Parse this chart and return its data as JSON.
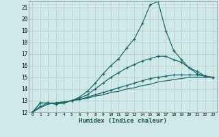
{
  "title": "",
  "xlabel": "Humidex (Indice chaleur)",
  "ylabel": "",
  "bg_color": "#cfe8e8",
  "line_color": "#1a6b6b",
  "grid_color": "#b8d8d8",
  "xlim": [
    -0.5,
    23.5
  ],
  "ylim": [
    12,
    21.5
  ],
  "yticks": [
    12,
    13,
    14,
    15,
    16,
    17,
    18,
    19,
    20,
    21
  ],
  "xticks": [
    0,
    1,
    2,
    3,
    4,
    5,
    6,
    7,
    8,
    9,
    10,
    11,
    12,
    13,
    14,
    15,
    16,
    17,
    18,
    19,
    20,
    21,
    22,
    23
  ],
  "line1_x": [
    0,
    1,
    2,
    3,
    4,
    5,
    6,
    7,
    8,
    9,
    10,
    11,
    12,
    13,
    14,
    15,
    16,
    17,
    18,
    19,
    20,
    21,
    22,
    23
  ],
  "line1_y": [
    12.0,
    12.8,
    12.8,
    12.7,
    12.8,
    13.0,
    13.3,
    13.8,
    14.5,
    15.3,
    16.0,
    16.6,
    17.5,
    18.3,
    19.6,
    21.2,
    21.5,
    19.0,
    17.3,
    16.5,
    15.8,
    15.5,
    15.1,
    15.0
  ],
  "line2_x": [
    0,
    1,
    2,
    3,
    4,
    5,
    6,
    7,
    8,
    9,
    10,
    11,
    12,
    13,
    14,
    15,
    16,
    17,
    18,
    19,
    20,
    21,
    22,
    23
  ],
  "line2_y": [
    12.0,
    12.8,
    12.8,
    12.7,
    12.8,
    13.0,
    13.2,
    13.5,
    14.0,
    14.5,
    15.0,
    15.4,
    15.8,
    16.1,
    16.4,
    16.6,
    16.8,
    16.8,
    16.5,
    16.3,
    15.8,
    15.3,
    15.1,
    15.0
  ],
  "line3_x": [
    0,
    1,
    2,
    3,
    4,
    5,
    6,
    7,
    8,
    9,
    10,
    11,
    12,
    13,
    14,
    15,
    16,
    17,
    18,
    19,
    20,
    21,
    22,
    23
  ],
  "line3_y": [
    12.0,
    12.5,
    12.8,
    12.8,
    12.9,
    13.0,
    13.1,
    13.3,
    13.5,
    13.7,
    13.9,
    14.1,
    14.3,
    14.5,
    14.7,
    14.9,
    15.0,
    15.1,
    15.2,
    15.2,
    15.2,
    15.2,
    15.1,
    15.0
  ],
  "line4_x": [
    0,
    1,
    2,
    3,
    4,
    5,
    6,
    7,
    8,
    9,
    10,
    11,
    12,
    13,
    14,
    15,
    16,
    17,
    18,
    19,
    20,
    21,
    22,
    23
  ],
  "line4_y": [
    12.0,
    12.4,
    12.7,
    12.8,
    12.9,
    13.0,
    13.1,
    13.2,
    13.4,
    13.5,
    13.7,
    13.8,
    14.0,
    14.1,
    14.3,
    14.4,
    14.6,
    14.7,
    14.8,
    14.9,
    15.0,
    15.0,
    15.0,
    15.0
  ]
}
